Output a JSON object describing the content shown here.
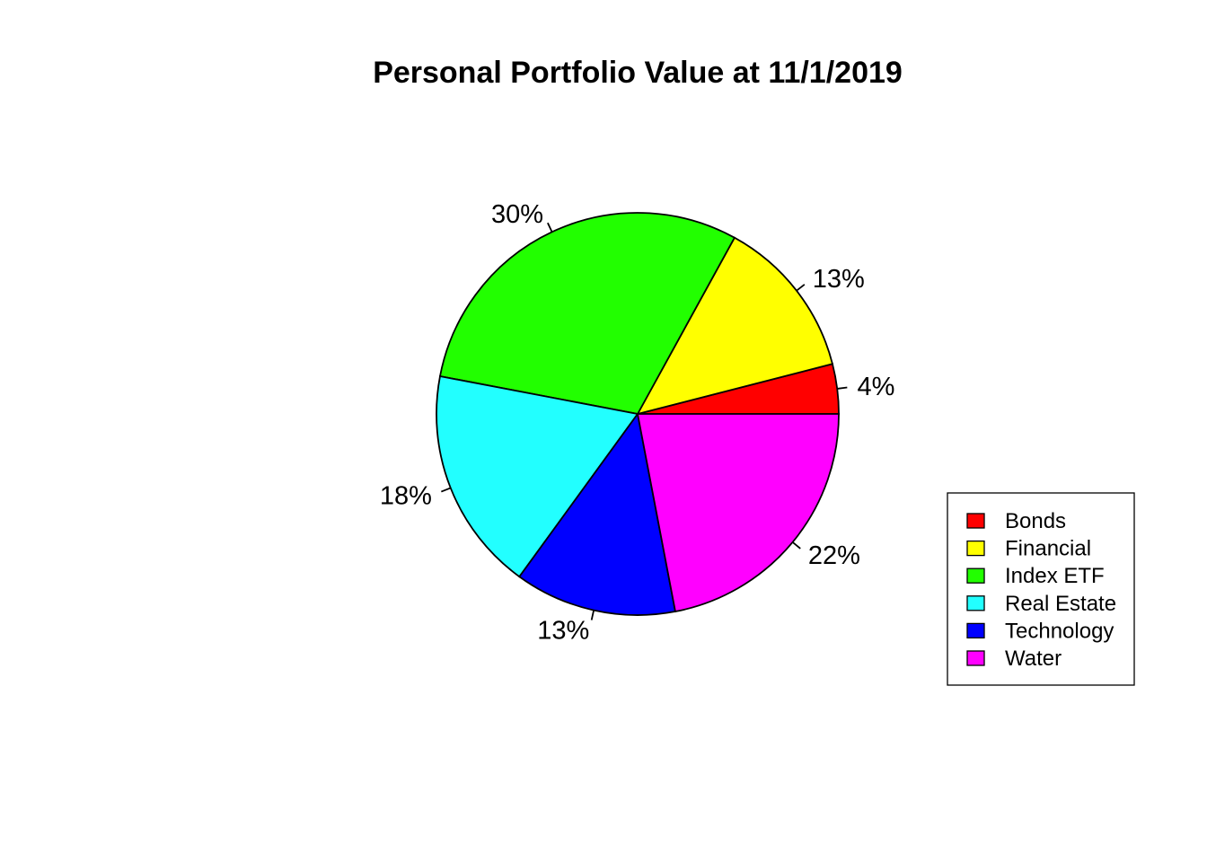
{
  "chart_data": {
    "type": "pie",
    "title": "Personal Portfolio Value at 11/1/2019",
    "categories": [
      "Bonds",
      "Financial",
      "Index ETF",
      "Real Estate",
      "Technology",
      "Water"
    ],
    "values": [
      4,
      13,
      30,
      18,
      13,
      22
    ],
    "labels": [
      "4%",
      "13%",
      "30%",
      "18%",
      "13%",
      "22%"
    ],
    "colors": [
      "#ff0000",
      "#ffff00",
      "#22ff00",
      "#22ffff",
      "#0000ff",
      "#ff00ff"
    ],
    "start_angle": "0 degrees (3 o'clock)",
    "direction": "counterclockwise",
    "legend": {
      "position": "right",
      "entries": [
        "Bonds",
        "Financial",
        "Index ETF",
        "Real Estate",
        "Technology",
        "Water"
      ]
    }
  }
}
